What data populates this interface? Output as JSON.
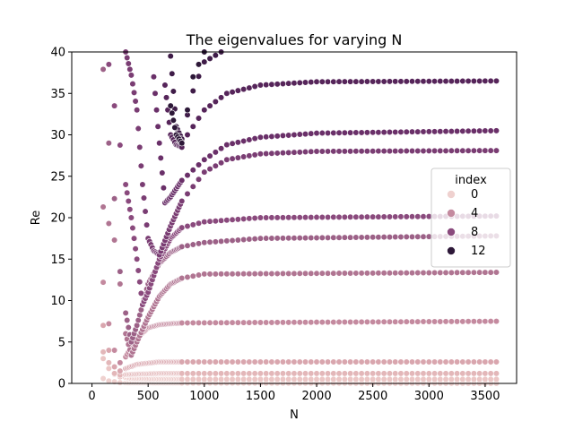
{
  "chart_data": {
    "type": "scatter",
    "title": "The eigenvalues for varying N",
    "xlabel": "N",
    "ylabel": "Re",
    "xlim": [
      -180,
      3780
    ],
    "ylim": [
      0,
      40
    ],
    "x_ticks": [
      0,
      500,
      1000,
      1500,
      2000,
      2500,
      3000,
      3500
    ],
    "y_ticks": [
      0,
      5,
      10,
      15,
      20,
      25,
      30,
      35,
      40
    ],
    "grid": false,
    "legend": {
      "title": "index",
      "placement": "center-right",
      "entries": [
        {
          "label": "0",
          "color": "#efd1cf"
        },
        {
          "label": "4",
          "color": "#c48a9f"
        },
        {
          "label": "8",
          "color": "#8a4a7d"
        },
        {
          "label": "12",
          "color": "#2d1838"
        }
      ]
    },
    "hue": "index",
    "color_scale": [
      "#efd1cf",
      "#2d1838"
    ],
    "x_start": 100,
    "x_step": 50,
    "x_end": 3600,
    "series": [
      {
        "index": 0,
        "color": "#efd1cf",
        "curve": [
          [
            100,
            0.6
          ],
          [
            150,
            0.3
          ],
          [
            200,
            0.2
          ],
          [
            250,
            0.1
          ],
          [
            350,
            0.05
          ],
          [
            3600,
            0.0
          ]
        ]
      },
      {
        "index": 1,
        "color": "#ebc6c5",
        "curve": [
          [
            100,
            3.0
          ],
          [
            150,
            1.8
          ],
          [
            200,
            1.1
          ],
          [
            250,
            0.8
          ],
          [
            350,
            0.6
          ],
          [
            600,
            0.5
          ],
          [
            3600,
            0.5
          ]
        ]
      },
      {
        "index": 2,
        "color": "#e3b7b9",
        "curve": [
          [
            100,
            3.8
          ],
          [
            150,
            2.5
          ],
          [
            200,
            1.2
          ],
          [
            250,
            1.0
          ],
          [
            350,
            1.1
          ],
          [
            600,
            1.2
          ],
          [
            3600,
            1.2
          ]
        ]
      },
      {
        "index": 3,
        "color": "#d9a6ae",
        "curve": [
          [
            100,
            7.0
          ],
          [
            150,
            4.0
          ],
          [
            200,
            2.0
          ],
          [
            250,
            1.5
          ],
          [
            300,
            1.8
          ],
          [
            400,
            2.3
          ],
          [
            600,
            2.6
          ],
          [
            3600,
            2.6
          ]
        ]
      },
      {
        "index": 4,
        "color": "#c48a9f",
        "curve": [
          [
            100,
            12.2
          ],
          [
            150,
            7.2
          ],
          [
            200,
            4.0
          ],
          [
            250,
            2.5
          ],
          [
            300,
            3.2
          ],
          [
            400,
            5.5
          ],
          [
            500,
            6.7
          ],
          [
            600,
            7.1
          ],
          [
            800,
            7.3
          ],
          [
            3600,
            7.5
          ]
        ]
      },
      {
        "index": 5,
        "color": "#b07592",
        "curve": [
          [
            100,
            21.3
          ],
          [
            200,
            17.3
          ],
          [
            250,
            12.0
          ],
          [
            300,
            6.0
          ],
          [
            350,
            3.4
          ],
          [
            400,
            5.0
          ],
          [
            500,
            8.0
          ],
          [
            600,
            10.5
          ],
          [
            700,
            12.0
          ],
          [
            800,
            12.7
          ],
          [
            1000,
            13.2
          ],
          [
            3600,
            13.4
          ]
        ]
      },
      {
        "index": 6,
        "color": "#9c6187",
        "curve": [
          [
            100,
            37.9
          ],
          [
            150,
            29.0
          ],
          [
            200,
            22.3
          ],
          [
            250,
            13.5
          ],
          [
            300,
            8.5
          ],
          [
            350,
            5.0
          ],
          [
            400,
            7.0
          ],
          [
            450,
            9.5
          ],
          [
            500,
            12.0
          ],
          [
            600,
            14.5
          ],
          [
            700,
            15.8
          ],
          [
            800,
            16.5
          ],
          [
            1000,
            17.0
          ],
          [
            1500,
            17.5
          ],
          [
            3600,
            17.8
          ]
        ]
      },
      {
        "index": 7,
        "color": "#8a4a7d",
        "curve": [
          [
            150,
            38.5
          ],
          [
            200,
            33.5
          ],
          [
            300,
            24.0
          ],
          [
            350,
            20.0
          ],
          [
            400,
            15.0
          ],
          [
            450,
            9.5
          ],
          [
            500,
            11.0
          ],
          [
            600,
            15.0
          ],
          [
            700,
            17.5
          ],
          [
            800,
            18.8
          ],
          [
            1000,
            19.5
          ],
          [
            1500,
            20.0
          ],
          [
            3600,
            20.2
          ]
        ]
      },
      {
        "index": 8,
        "color": "#7a3d73",
        "curve": [
          [
            300,
            40.0
          ],
          [
            350,
            37.2
          ],
          [
            400,
            33.0
          ],
          [
            450,
            24.0
          ],
          [
            500,
            17.5
          ],
          [
            550,
            16.0
          ],
          [
            600,
            15.5
          ],
          [
            700,
            19.0
          ],
          [
            800,
            22.0
          ],
          [
            1000,
            25.5
          ],
          [
            1200,
            27.0
          ],
          [
            1500,
            27.7
          ],
          [
            2000,
            28.0
          ],
          [
            3600,
            28.1
          ]
        ]
      },
      {
        "index": 9,
        "color": "#6a3069",
        "curve": [
          [
            550,
            37.0
          ],
          [
            600,
            29.0
          ],
          [
            650,
            21.8
          ],
          [
            700,
            22.5
          ],
          [
            800,
            24.5
          ],
          [
            1000,
            27.0
          ],
          [
            1200,
            28.8
          ],
          [
            1500,
            29.7
          ],
          [
            2000,
            30.2
          ],
          [
            3600,
            30.5
          ]
        ]
      },
      {
        "index": 10,
        "color": "#56255a",
        "curve": [
          [
            650,
            36.0
          ],
          [
            700,
            30.0
          ],
          [
            750,
            28.8
          ],
          [
            800,
            28.5
          ],
          [
            850,
            30.0
          ],
          [
            1000,
            33.0
          ],
          [
            1200,
            35.0
          ],
          [
            1500,
            36.0
          ],
          [
            2000,
            36.4
          ],
          [
            3600,
            36.5
          ]
        ]
      },
      {
        "index": 11,
        "color": "#3f1c48",
        "curve": [
          [
            700,
            39.5
          ],
          [
            750,
            31.0
          ],
          [
            800,
            29.5
          ],
          [
            900,
            35.3
          ],
          [
            1000,
            38.8
          ],
          [
            1150,
            40.0
          ]
        ]
      },
      {
        "index": 12,
        "color": "#2d1838",
        "curve": [
          [
            700,
            33.5
          ],
          [
            750,
            30.0
          ],
          [
            800,
            29.0
          ],
          [
            900,
            37.0
          ],
          [
            1000,
            40.0
          ]
        ]
      }
    ]
  }
}
